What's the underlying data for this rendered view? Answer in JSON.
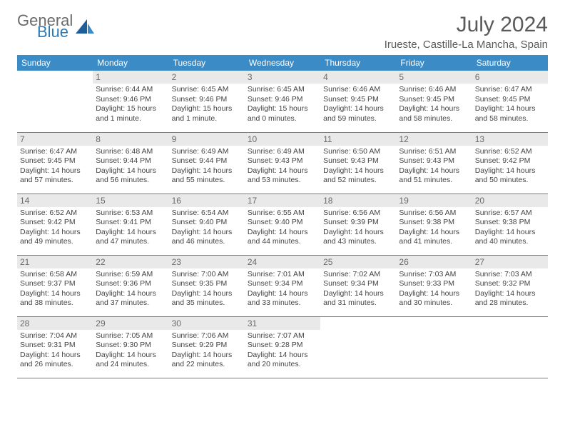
{
  "brand": {
    "part1": "General",
    "part2": "Blue"
  },
  "title": "July 2024",
  "location": "Irueste, Castille-La Mancha, Spain",
  "colors": {
    "header_bg": "#3b8bc6",
    "header_text": "#ffffff",
    "daynum_bg": "#e9e9e9",
    "daynum_text": "#6a6a6a",
    "border": "#3b8bc6",
    "body_text": "#444444",
    "title_text": "#5a5a5a",
    "logo_gray": "#6b6b6b",
    "logo_blue": "#2b7ab8"
  },
  "day_headers": [
    "Sunday",
    "Monday",
    "Tuesday",
    "Wednesday",
    "Thursday",
    "Friday",
    "Saturday"
  ],
  "weeks": [
    [
      null,
      {
        "n": "1",
        "sr": "Sunrise: 6:44 AM",
        "ss": "Sunset: 9:46 PM",
        "d1": "Daylight: 15 hours",
        "d2": "and 1 minute."
      },
      {
        "n": "2",
        "sr": "Sunrise: 6:45 AM",
        "ss": "Sunset: 9:46 PM",
        "d1": "Daylight: 15 hours",
        "d2": "and 1 minute."
      },
      {
        "n": "3",
        "sr": "Sunrise: 6:45 AM",
        "ss": "Sunset: 9:46 PM",
        "d1": "Daylight: 15 hours",
        "d2": "and 0 minutes."
      },
      {
        "n": "4",
        "sr": "Sunrise: 6:46 AM",
        "ss": "Sunset: 9:45 PM",
        "d1": "Daylight: 14 hours",
        "d2": "and 59 minutes."
      },
      {
        "n": "5",
        "sr": "Sunrise: 6:46 AM",
        "ss": "Sunset: 9:45 PM",
        "d1": "Daylight: 14 hours",
        "d2": "and 58 minutes."
      },
      {
        "n": "6",
        "sr": "Sunrise: 6:47 AM",
        "ss": "Sunset: 9:45 PM",
        "d1": "Daylight: 14 hours",
        "d2": "and 58 minutes."
      }
    ],
    [
      {
        "n": "7",
        "sr": "Sunrise: 6:47 AM",
        "ss": "Sunset: 9:45 PM",
        "d1": "Daylight: 14 hours",
        "d2": "and 57 minutes."
      },
      {
        "n": "8",
        "sr": "Sunrise: 6:48 AM",
        "ss": "Sunset: 9:44 PM",
        "d1": "Daylight: 14 hours",
        "d2": "and 56 minutes."
      },
      {
        "n": "9",
        "sr": "Sunrise: 6:49 AM",
        "ss": "Sunset: 9:44 PM",
        "d1": "Daylight: 14 hours",
        "d2": "and 55 minutes."
      },
      {
        "n": "10",
        "sr": "Sunrise: 6:49 AM",
        "ss": "Sunset: 9:43 PM",
        "d1": "Daylight: 14 hours",
        "d2": "and 53 minutes."
      },
      {
        "n": "11",
        "sr": "Sunrise: 6:50 AM",
        "ss": "Sunset: 9:43 PM",
        "d1": "Daylight: 14 hours",
        "d2": "and 52 minutes."
      },
      {
        "n": "12",
        "sr": "Sunrise: 6:51 AM",
        "ss": "Sunset: 9:43 PM",
        "d1": "Daylight: 14 hours",
        "d2": "and 51 minutes."
      },
      {
        "n": "13",
        "sr": "Sunrise: 6:52 AM",
        "ss": "Sunset: 9:42 PM",
        "d1": "Daylight: 14 hours",
        "d2": "and 50 minutes."
      }
    ],
    [
      {
        "n": "14",
        "sr": "Sunrise: 6:52 AM",
        "ss": "Sunset: 9:42 PM",
        "d1": "Daylight: 14 hours",
        "d2": "and 49 minutes."
      },
      {
        "n": "15",
        "sr": "Sunrise: 6:53 AM",
        "ss": "Sunset: 9:41 PM",
        "d1": "Daylight: 14 hours",
        "d2": "and 47 minutes."
      },
      {
        "n": "16",
        "sr": "Sunrise: 6:54 AM",
        "ss": "Sunset: 9:40 PM",
        "d1": "Daylight: 14 hours",
        "d2": "and 46 minutes."
      },
      {
        "n": "17",
        "sr": "Sunrise: 6:55 AM",
        "ss": "Sunset: 9:40 PM",
        "d1": "Daylight: 14 hours",
        "d2": "and 44 minutes."
      },
      {
        "n": "18",
        "sr": "Sunrise: 6:56 AM",
        "ss": "Sunset: 9:39 PM",
        "d1": "Daylight: 14 hours",
        "d2": "and 43 minutes."
      },
      {
        "n": "19",
        "sr": "Sunrise: 6:56 AM",
        "ss": "Sunset: 9:38 PM",
        "d1": "Daylight: 14 hours",
        "d2": "and 41 minutes."
      },
      {
        "n": "20",
        "sr": "Sunrise: 6:57 AM",
        "ss": "Sunset: 9:38 PM",
        "d1": "Daylight: 14 hours",
        "d2": "and 40 minutes."
      }
    ],
    [
      {
        "n": "21",
        "sr": "Sunrise: 6:58 AM",
        "ss": "Sunset: 9:37 PM",
        "d1": "Daylight: 14 hours",
        "d2": "and 38 minutes."
      },
      {
        "n": "22",
        "sr": "Sunrise: 6:59 AM",
        "ss": "Sunset: 9:36 PM",
        "d1": "Daylight: 14 hours",
        "d2": "and 37 minutes."
      },
      {
        "n": "23",
        "sr": "Sunrise: 7:00 AM",
        "ss": "Sunset: 9:35 PM",
        "d1": "Daylight: 14 hours",
        "d2": "and 35 minutes."
      },
      {
        "n": "24",
        "sr": "Sunrise: 7:01 AM",
        "ss": "Sunset: 9:34 PM",
        "d1": "Daylight: 14 hours",
        "d2": "and 33 minutes."
      },
      {
        "n": "25",
        "sr": "Sunrise: 7:02 AM",
        "ss": "Sunset: 9:34 PM",
        "d1": "Daylight: 14 hours",
        "d2": "and 31 minutes."
      },
      {
        "n": "26",
        "sr": "Sunrise: 7:03 AM",
        "ss": "Sunset: 9:33 PM",
        "d1": "Daylight: 14 hours",
        "d2": "and 30 minutes."
      },
      {
        "n": "27",
        "sr": "Sunrise: 7:03 AM",
        "ss": "Sunset: 9:32 PM",
        "d1": "Daylight: 14 hours",
        "d2": "and 28 minutes."
      }
    ],
    [
      {
        "n": "28",
        "sr": "Sunrise: 7:04 AM",
        "ss": "Sunset: 9:31 PM",
        "d1": "Daylight: 14 hours",
        "d2": "and 26 minutes."
      },
      {
        "n": "29",
        "sr": "Sunrise: 7:05 AM",
        "ss": "Sunset: 9:30 PM",
        "d1": "Daylight: 14 hours",
        "d2": "and 24 minutes."
      },
      {
        "n": "30",
        "sr": "Sunrise: 7:06 AM",
        "ss": "Sunset: 9:29 PM",
        "d1": "Daylight: 14 hours",
        "d2": "and 22 minutes."
      },
      {
        "n": "31",
        "sr": "Sunrise: 7:07 AM",
        "ss": "Sunset: 9:28 PM",
        "d1": "Daylight: 14 hours",
        "d2": "and 20 minutes."
      },
      null,
      null,
      null
    ]
  ]
}
